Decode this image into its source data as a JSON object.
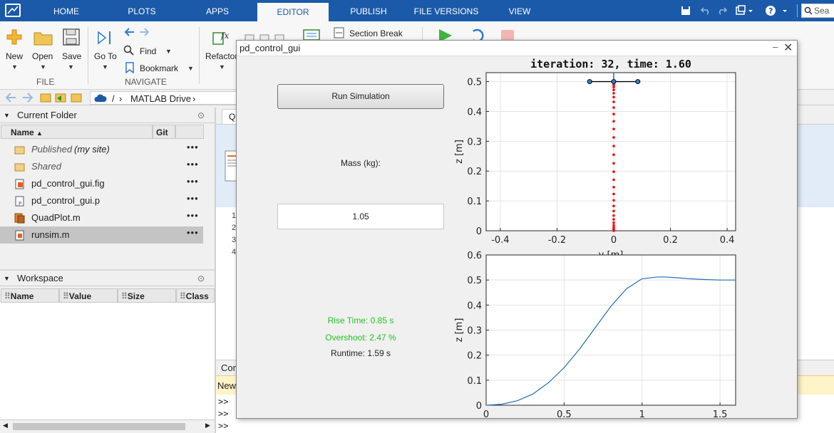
{
  "tabs": [
    "HOME",
    "PLOTS",
    "APPS",
    "EDITOR",
    "PUBLISH",
    "FILE VERSIONS",
    "VIEW"
  ],
  "active_tab": "EDITOR",
  "search_placeholder": "Sea",
  "ribbon": {
    "file": {
      "new": "New",
      "open": "Open",
      "save": "Save",
      "group": "FILE"
    },
    "navigate": {
      "goto": "Go To",
      "find": "Find",
      "bookmark": "Bookmark",
      "group": "NAVIGATE"
    },
    "refactor": "Refactor",
    "section_break": "Section Break"
  },
  "address": {
    "root": "/",
    "folder": "MATLAB Drive"
  },
  "current_folder": {
    "title": "Current Folder",
    "columns": [
      "Name",
      "Git"
    ],
    "files": [
      {
        "name": "Published",
        "suffix": "(my site)",
        "kind": "folder"
      },
      {
        "name": "Shared",
        "suffix": "",
        "kind": "folder"
      },
      {
        "name": "pd_control_gui.fig",
        "suffix": "",
        "kind": "fig"
      },
      {
        "name": "pd_control_gui.p",
        "suffix": "",
        "kind": "p"
      },
      {
        "name": "QuadPlot.m",
        "suffix": "",
        "kind": "class"
      },
      {
        "name": "runsim.m",
        "suffix": "",
        "kind": "m",
        "selected": true
      }
    ],
    "dots": "•••"
  },
  "workspace": {
    "title": "Workspace",
    "columns": [
      "Name",
      "Value",
      "Size",
      "Class"
    ]
  },
  "editor": {
    "tab_label": "Qu",
    "line_numbers": [
      "1",
      "2",
      "3",
      "4"
    ]
  },
  "command_window": {
    "label": "Com",
    "new_bar": "New",
    "prompts": [
      ">>",
      ">>",
      ">>"
    ]
  },
  "figure": {
    "title": "pd_control_gui",
    "run_button": "Run Simulation",
    "mass_label": "Mass (kg):",
    "mass_value": "1.05",
    "rise_time": "Rise Time:  0.85 s",
    "overshoot": "Overshoot:  2.47 %",
    "runtime": "Runtime:  1.59 s",
    "status_color": "#22c422"
  },
  "chart_data": [
    {
      "type": "scatter",
      "title": "iteration: 32, time: 1.60",
      "xlabel": "y [m]",
      "ylabel": "z [m]",
      "xlim": [
        -0.45,
        0.43
      ],
      "ylim": [
        0,
        0.53
      ],
      "xticks": [
        "-0.4",
        "-0.2",
        "0",
        "0.2",
        "0.4"
      ],
      "yticks": [
        "0",
        "0.1",
        "0.2",
        "0.3",
        "0.4",
        "0.5"
      ],
      "grid": true,
      "series": [
        {
          "style": "trajectory-dots",
          "color": "#ff0000",
          "x": [
            0,
            0,
            0,
            0,
            0,
            0,
            0,
            0,
            0,
            0,
            0,
            0,
            0,
            0,
            0,
            0,
            0,
            0,
            0,
            0,
            0,
            0,
            0,
            0,
            0,
            0,
            0,
            0,
            0,
            0,
            0,
            0
          ],
          "y": [
            0.0,
            0.0005,
            0.002,
            0.006,
            0.011,
            0.018,
            0.027,
            0.038,
            0.051,
            0.066,
            0.083,
            0.102,
            0.123,
            0.146,
            0.171,
            0.198,
            0.226,
            0.255,
            0.284,
            0.313,
            0.341,
            0.367,
            0.391,
            0.413,
            0.432,
            0.448,
            0.461,
            0.472,
            0.481,
            0.488,
            0.494,
            0.499
          ]
        },
        {
          "style": "quad-arms",
          "color": "#000000",
          "x": [
            -0.085,
            0,
            0.085
          ],
          "y": [
            0.5,
            0.5,
            0.5
          ]
        }
      ]
    },
    {
      "type": "line",
      "xlabel": "",
      "ylabel": "z [m]",
      "xlim": [
        0,
        1.6
      ],
      "ylim": [
        0,
        0.6
      ],
      "xticks": [
        "0",
        "0.5",
        "1",
        "1.5"
      ],
      "yticks": [
        "0",
        "0.1",
        "0.2",
        "0.3",
        "0.4",
        "0.5",
        "0.6"
      ],
      "grid": true,
      "series": [
        {
          "color": "#1f6fb4",
          "x": [
            0,
            0.1,
            0.2,
            0.3,
            0.4,
            0.5,
            0.6,
            0.7,
            0.8,
            0.9,
            1.0,
            1.1,
            1.15,
            1.2,
            1.3,
            1.4,
            1.5,
            1.6
          ],
          "y": [
            0,
            0.004,
            0.018,
            0.045,
            0.09,
            0.15,
            0.225,
            0.31,
            0.395,
            0.465,
            0.505,
            0.512,
            0.512,
            0.51,
            0.505,
            0.502,
            0.5,
            0.5
          ]
        }
      ]
    }
  ]
}
